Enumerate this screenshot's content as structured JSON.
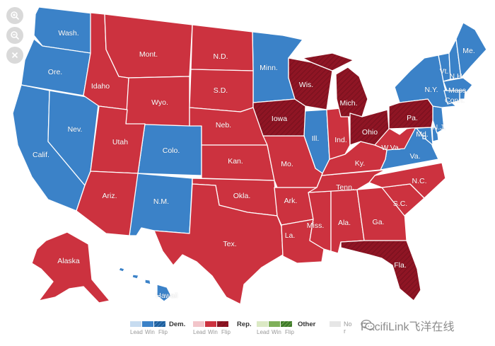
{
  "controls": {
    "zoom_in": "zoom-in-icon",
    "zoom_out": "zoom-out-icon",
    "close": "close-icon"
  },
  "colors": {
    "dem_win": "#3b82c8",
    "rep_win": "#cc323f",
    "rep_flip": "#8f1524",
    "dem_lead": "#c7dcf0",
    "rep_lead": "#f2c5ca",
    "other_lead": "#dbe9c4",
    "other_win": "#7fb05a",
    "no_result": "#e6e6e6"
  },
  "states": {
    "wash": "Wash.",
    "ore": "Ore.",
    "calif": "Calif.",
    "nev": "Nev.",
    "idaho": "Idaho",
    "mont": "Mont.",
    "wyo": "Wyo.",
    "utah": "Utah",
    "colo": "Colo.",
    "ariz": "Ariz.",
    "nm": "N.M.",
    "nd": "N.D.",
    "sd": "S.D.",
    "neb": "Neb.",
    "kan": "Kan.",
    "okla": "Okla.",
    "tex": "Tex.",
    "minn": "Minn.",
    "iowa": "Iowa",
    "mo": "Mo.",
    "ark": "Ark.",
    "la": "La.",
    "wis": "Wis.",
    "ill": "Ill.",
    "mich": "Mich.",
    "ind": "Ind.",
    "ohio": "Ohio",
    "ky": "Ky.",
    "tenn": "Tenn.",
    "miss": "Miss.",
    "ala": "Ala.",
    "ga": "Ga.",
    "fla": "Fla.",
    "sc": "S.C.",
    "nc": "N.C.",
    "va": "Va.",
    "wva": "W.Va.",
    "pa": "Pa.",
    "ny": "N.Y.",
    "me": "Me.",
    "vt": "Vt.",
    "nh": "N.H.",
    "mass": "Mass.",
    "conn": "Conn.",
    "nj": "N.J.",
    "md": "Md.",
    "alaska": "Alaska",
    "hawaii": "Hawaii"
  },
  "legend": {
    "dem": {
      "title": "Dem.",
      "lead": "Lead",
      "win": "Win",
      "flip": "Flip"
    },
    "rep": {
      "title": "Rep.",
      "lead": "Lead",
      "win": "Win",
      "flip": "Flip"
    },
    "other": {
      "title": "Other",
      "lead": "Lead",
      "win": "Win",
      "flip": "Flip"
    },
    "no_result": {
      "title": "No r"
    }
  },
  "watermark": {
    "text": "PacifiLink飞洋在线",
    "icon": "wechat-icon"
  }
}
